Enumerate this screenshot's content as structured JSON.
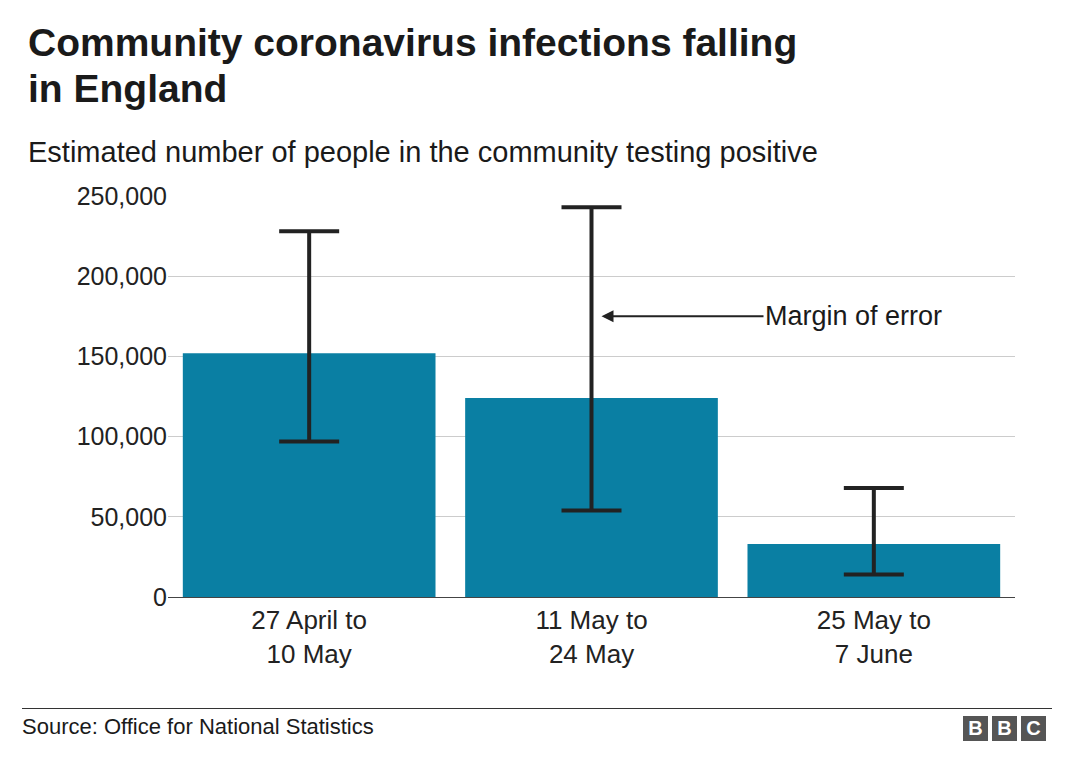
{
  "chart_data": {
    "type": "bar",
    "title": "Community coronavirus infections falling\nin England",
    "subtitle": "Estimated number of people in the community testing positive",
    "categories": [
      "27 April to\n10 May",
      "11 May to\n24 May",
      "25 May to\n7 June"
    ],
    "values": [
      152000,
      124000,
      33000
    ],
    "error_lower": [
      97000,
      54000,
      14000
    ],
    "error_upper": [
      228000,
      243000,
      68000
    ],
    "color": "#0a7fa3",
    "ylim": [
      0,
      250000
    ],
    "yticks": [
      0,
      {
        "value": 50000,
        "label": "50,000"
      },
      {
        "value": 100000,
        "label": "100,000"
      },
      {
        "value": 150000,
        "label": "150,000"
      },
      {
        "value": 200000,
        "label": "200,000"
      },
      {
        "value": 250000,
        "label": "250,000"
      }
    ],
    "grid": true,
    "annotations": [
      {
        "text": "Margin of error"
      }
    ],
    "source": "Source: Office for National Statistics",
    "logo": "BBC"
  }
}
